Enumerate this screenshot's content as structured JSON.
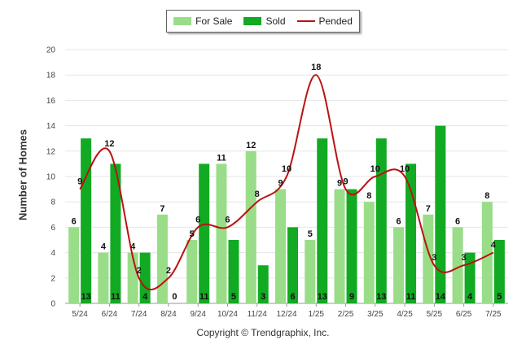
{
  "chart_data": {
    "type": "bar",
    "categories": [
      "5/24",
      "6/24",
      "7/24",
      "8/24",
      "9/24",
      "10/24",
      "11/24",
      "12/24",
      "1/25",
      "2/25",
      "3/25",
      "4/25",
      "5/25",
      "6/25",
      "7/25"
    ],
    "series": [
      {
        "name": "For Sale",
        "kind": "bar",
        "color": "#99dd88",
        "values": [
          6,
          4,
          4,
          7,
          5,
          11,
          12,
          9,
          5,
          9,
          8,
          6,
          7,
          6,
          8
        ]
      },
      {
        "name": "Sold",
        "kind": "bar",
        "color": "#11aa22",
        "values": [
          13,
          11,
          4,
          0,
          11,
          5,
          3,
          6,
          13,
          9,
          13,
          11,
          14,
          4,
          5
        ]
      },
      {
        "name": "Pended",
        "kind": "line",
        "color": "#bb1111",
        "values": [
          9,
          12,
          2,
          2,
          6,
          6,
          8,
          10,
          18,
          9,
          10,
          10,
          3,
          3,
          4
        ]
      }
    ],
    "ylabel": "Number of Homes",
    "ylim": [
      0,
      20
    ],
    "yticks": [
      0,
      2,
      4,
      6,
      8,
      10,
      12,
      14,
      16,
      18,
      20
    ],
    "grid": true,
    "legend": "top-center"
  },
  "footer": "Copyright © Trendgraphix, Inc."
}
